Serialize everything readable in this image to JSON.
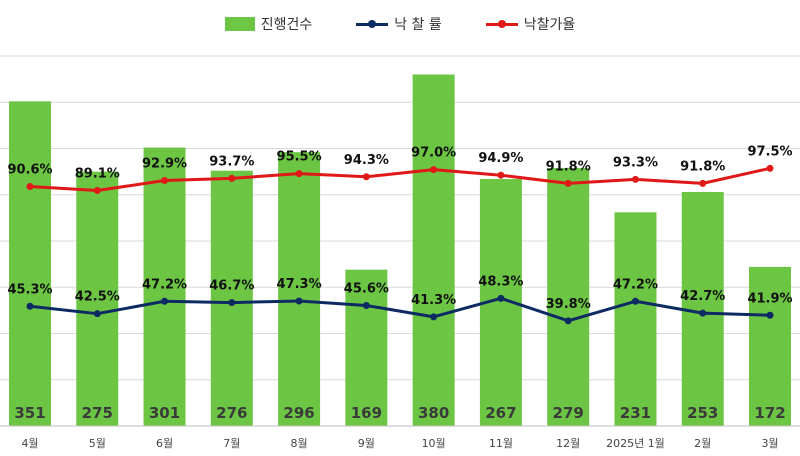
{
  "chart_data": {
    "type": "bar+line",
    "categories": [
      "4월",
      "5월",
      "6월",
      "7월",
      "8월",
      "9월",
      "10월",
      "11월",
      "12월",
      "2025년 1월",
      "2월",
      "3월"
    ],
    "series": [
      {
        "name": "진행건수",
        "type": "bar",
        "color": "#6cc644",
        "values": [
          351,
          275,
          301,
          276,
          296,
          169,
          380,
          267,
          279,
          231,
          253,
          172
        ],
        "labels": [
          "351",
          "275",
          "301",
          "276",
          "296",
          "169",
          "380",
          "267",
          "279",
          "231",
          "253",
          "172"
        ]
      },
      {
        "name": "낙 찰 률",
        "type": "line",
        "color": "#0d2a63",
        "values": [
          45.3,
          42.5,
          47.2,
          46.7,
          47.3,
          45.6,
          41.3,
          48.3,
          39.8,
          47.2,
          42.7,
          41.9
        ],
        "labels": [
          "45.3%",
          "42.5%",
          "47.2%",
          "46.7%",
          "47.3%",
          "45.6%",
          "41.3%",
          "48.3%",
          "39.8%",
          "47.2%",
          "42.7%",
          "41.9%"
        ]
      },
      {
        "name": "낙찰가율",
        "type": "line",
        "color": "#e01818",
        "values": [
          90.6,
          89.1,
          92.9,
          93.7,
          95.5,
          94.3,
          97.0,
          94.9,
          91.8,
          93.3,
          91.8,
          97.5
        ],
        "labels": [
          "90.6%",
          "89.1%",
          "92.9%",
          "93.7%",
          "95.5%",
          "94.3%",
          "97.0%",
          "94.9%",
          "91.8%",
          "93.3%",
          "91.8%",
          "97.5%"
        ]
      }
    ],
    "legend_position": "top-center",
    "grid": true,
    "bar_ylim": [
      0,
      400
    ],
    "line_ylim": [
      0,
      140
    ],
    "gridline_color": "#d9d9d9"
  }
}
